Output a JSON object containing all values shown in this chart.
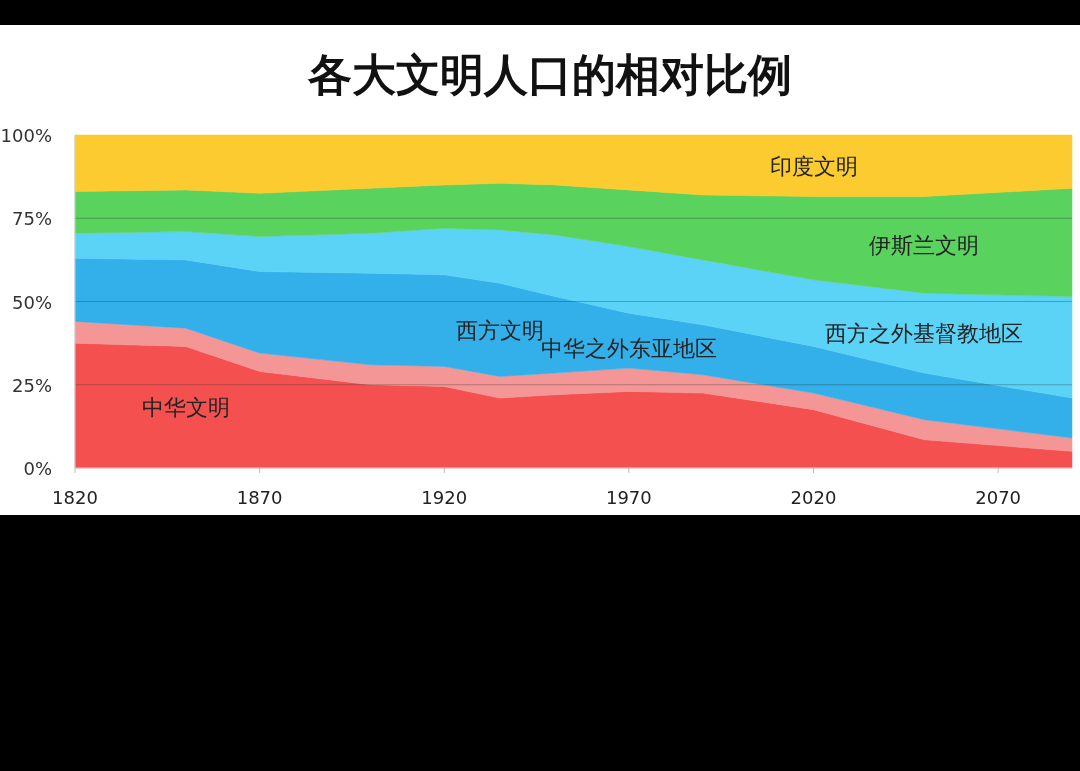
{
  "chart_data": {
    "type": "area",
    "stacked": true,
    "title": "各大文明人口的相对比例",
    "x": [
      1820,
      1850,
      1870,
      1900,
      1920,
      1935,
      1950,
      1970,
      1990,
      2020,
      2050,
      2090
    ],
    "series": [
      {
        "name": "中华文明",
        "color": "#f55050",
        "values": [
          37.5,
          36.5,
          29,
          25,
          24.5,
          21,
          22,
          23,
          22.5,
          17.5,
          8.5,
          5
        ]
      },
      {
        "name": "中华之外东亚地区",
        "color": "#f59696",
        "values": [
          6.5,
          5.5,
          5.5,
          6,
          6,
          6.5,
          6.5,
          7,
          5.5,
          5,
          6,
          4
        ]
      },
      {
        "name": "西方文明",
        "color": "#33b0ea",
        "values": [
          19,
          20.5,
          24.5,
          27.5,
          27.5,
          28,
          23,
          16.5,
          15,
          14,
          14,
          12
        ]
      },
      {
        "name": "西方之外基督教地区",
        "color": "#5bd3f7",
        "values": [
          7.5,
          8.5,
          10.5,
          12,
          14,
          16,
          18.5,
          20,
          19.5,
          20,
          24,
          30.5
        ]
      },
      {
        "name": "伊斯兰文明",
        "color": "#5ad25e",
        "values": [
          12.5,
          12.5,
          13,
          13.5,
          13,
          14,
          15,
          17,
          19.5,
          25,
          29,
          32.5
        ]
      },
      {
        "name": "印度文明",
        "color": "#fbcb30",
        "values": [
          17,
          16.5,
          17.5,
          16,
          15,
          14.5,
          15,
          16.5,
          18,
          18.5,
          18.5,
          16
        ]
      }
    ],
    "xlim": [
      1820,
      2090
    ],
    "xticks": [
      1820,
      1870,
      1920,
      1970,
      2020,
      2070
    ],
    "ylim": [
      0,
      100
    ],
    "yticks": [
      {
        "value": 0,
        "label": "0%"
      },
      {
        "value": 25,
        "label": "25%"
      },
      {
        "value": 50,
        "label": "50%"
      },
      {
        "value": 75,
        "label": "75%"
      },
      {
        "value": 100,
        "label": "100%"
      }
    ],
    "grid": "y"
  }
}
